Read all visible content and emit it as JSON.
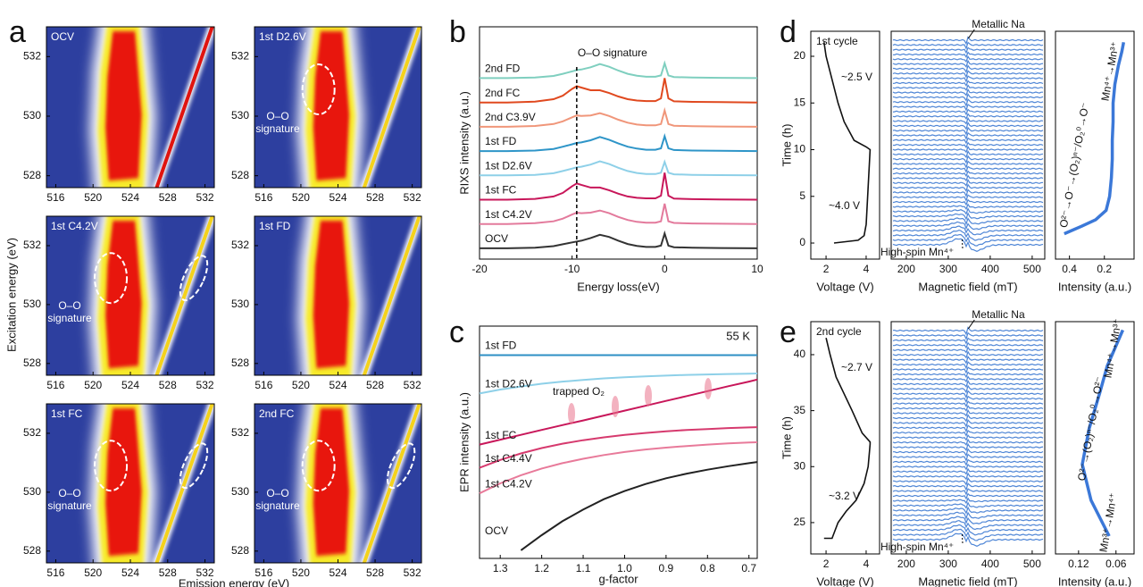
{
  "panel_labels": [
    "a",
    "b",
    "c",
    "d",
    "e"
  ],
  "chart_data": [
    {
      "type": "heatmap",
      "label": "OCV",
      "xlim": [
        515,
        533
      ],
      "xticks": [
        516,
        520,
        524,
        528,
        532
      ],
      "ylim": [
        527.6,
        533
      ],
      "yticks": [
        528,
        530,
        532
      ]
    },
    {
      "type": "heatmap",
      "label": "1st D2.6V",
      "xlim": [
        515,
        533
      ],
      "xticks": [
        516,
        520,
        524,
        528,
        532
      ],
      "ylim": [
        527.6,
        533
      ],
      "yticks": [
        528,
        530,
        532
      ],
      "annotation": [
        "O–O",
        "signature"
      ]
    },
    {
      "type": "heatmap",
      "label": "1st C4.2V",
      "xlim": [
        515,
        533
      ],
      "xticks": [
        516,
        520,
        524,
        528,
        532
      ],
      "ylim": [
        527.6,
        533
      ],
      "yticks": [
        528,
        530,
        532
      ],
      "annotation": [
        "O–O",
        "signature"
      ],
      "ylabel": "Excitation energy (eV)"
    },
    {
      "type": "heatmap",
      "label": "1st FD",
      "xlim": [
        515,
        533
      ],
      "xticks": [
        516,
        520,
        524,
        528,
        532
      ],
      "ylim": [
        527.6,
        533
      ],
      "yticks": [
        528,
        530,
        532
      ]
    },
    {
      "type": "heatmap",
      "label": "1st FC",
      "xlim": [
        515,
        533
      ],
      "xticks": [
        516,
        520,
        524,
        528,
        532
      ],
      "ylim": [
        527.6,
        533
      ],
      "yticks": [
        528,
        530,
        532
      ],
      "annotation": [
        "O–O",
        "signature"
      ],
      "xlabel": "Emission energy (eV)"
    },
    {
      "type": "heatmap",
      "label": "2nd FC",
      "xlim": [
        515,
        533
      ],
      "xticks": [
        516,
        520,
        524,
        528,
        532
      ],
      "ylim": [
        527.6,
        533
      ],
      "yticks": [
        528,
        530,
        532
      ],
      "annotation": [
        "O–O",
        "signature"
      ]
    },
    {
      "type": "line",
      "xlabel": "Energy loss(eV)",
      "ylabel": "RIXS intensity (a.u.)",
      "annotation": "O–O signature",
      "marker_line": -9.5,
      "xlim": [
        -20,
        10
      ],
      "xticks": [
        -20,
        -10,
        0,
        10
      ],
      "ylim": [
        -0.4,
        8.2
      ],
      "x": [
        -20,
        -17,
        -14,
        -12,
        -11,
        -10,
        -9.5,
        -9,
        -8,
        -7,
        -6,
        -5,
        -4,
        -3,
        -2,
        -1,
        -0.4,
        0,
        0.4,
        1,
        3,
        6,
        10
      ],
      "series": [
        {
          "name": "OCV",
          "color": "#333333",
          "values": [
            0,
            0,
            0.02,
            0.08,
            0.15,
            0.22,
            0.25,
            0.28,
            0.38,
            0.5,
            0.42,
            0.28,
            0.16,
            0.09,
            0.05,
            0.05,
            0.1,
            0.55,
            0.1,
            0.04,
            0.02,
            0.01,
            0
          ]
        },
        {
          "name": "1st C4.2V",
          "color": "#e37a9c",
          "values": [
            0.9,
            0.9,
            0.93,
            1.0,
            1.1,
            1.25,
            1.32,
            1.3,
            1.32,
            1.4,
            1.3,
            1.16,
            1.05,
            0.98,
            0.95,
            0.95,
            1.0,
            1.65,
            1.0,
            0.94,
            0.92,
            0.91,
            0.9
          ]
        },
        {
          "name": "1st FC",
          "color": "#c8175a",
          "values": [
            1.8,
            1.8,
            1.83,
            1.92,
            2.05,
            2.3,
            2.4,
            2.35,
            2.25,
            2.25,
            2.15,
            2.02,
            1.92,
            1.87,
            1.85,
            1.85,
            1.95,
            2.8,
            1.95,
            1.84,
            1.82,
            1.81,
            1.8
          ]
        },
        {
          "name": "1st D2.6V",
          "color": "#8ed0e8",
          "values": [
            2.7,
            2.7,
            2.72,
            2.78,
            2.86,
            2.95,
            3.0,
            3.02,
            3.1,
            3.22,
            3.12,
            2.98,
            2.86,
            2.79,
            2.75,
            2.75,
            2.8,
            3.2,
            2.8,
            2.74,
            2.72,
            2.71,
            2.7
          ]
        },
        {
          "name": "1st FD",
          "color": "#2e95c8",
          "values": [
            3.6,
            3.6,
            3.62,
            3.68,
            3.76,
            3.85,
            3.9,
            3.92,
            4.0,
            4.12,
            4.02,
            3.88,
            3.76,
            3.69,
            3.65,
            3.65,
            3.7,
            4.15,
            3.7,
            3.64,
            3.62,
            3.61,
            3.6
          ]
        },
        {
          "name": "2nd C3.9V",
          "color": "#f0967a",
          "values": [
            4.5,
            4.5,
            4.53,
            4.6,
            4.7,
            4.85,
            4.92,
            4.9,
            4.92,
            5.0,
            4.9,
            4.76,
            4.65,
            4.58,
            4.55,
            4.55,
            4.6,
            5.1,
            4.6,
            4.54,
            4.52,
            4.51,
            4.5
          ]
        },
        {
          "name": "2nd FC",
          "color": "#e0491f",
          "values": [
            5.4,
            5.4,
            5.43,
            5.52,
            5.65,
            5.9,
            6.0,
            5.95,
            5.85,
            5.85,
            5.75,
            5.62,
            5.52,
            5.47,
            5.45,
            5.45,
            5.55,
            6.3,
            5.55,
            5.44,
            5.42,
            5.41,
            5.4
          ]
        },
        {
          "name": "2nd FD",
          "color": "#7fcfbf",
          "values": [
            6.3,
            6.3,
            6.32,
            6.38,
            6.46,
            6.55,
            6.6,
            6.62,
            6.7,
            6.82,
            6.72,
            6.58,
            6.46,
            6.39,
            6.35,
            6.35,
            6.4,
            6.85,
            6.4,
            6.34,
            6.32,
            6.31,
            6.3
          ]
        }
      ]
    },
    {
      "type": "line",
      "xlabel": "g-factor",
      "ylabel": "EPR intensity (a.u.)",
      "annotation": "trapped O₂",
      "temperature": "55 K",
      "xlim": [
        1.35,
        0.68
      ],
      "xticks": [
        1.3,
        1.2,
        1.1,
        {
          "value": 1,
          "label": "1.0"
        },
        0.9,
        0.8,
        0.7
      ],
      "ylim": [
        0,
        10
      ],
      "x": [
        1.35,
        1.3,
        1.25,
        1.2,
        1.15,
        1.1,
        1.05,
        1.0,
        0.95,
        0.9,
        0.85,
        0.8,
        0.75,
        0.7,
        0.68
      ],
      "series": [
        {
          "name": "1st FD",
          "color": "#2e8fc4",
          "values": [
            8.75,
            8.75,
            8.75,
            8.75,
            8.75,
            8.75,
            8.75,
            8.75,
            8.75,
            8.75,
            8.75,
            8.75,
            8.75,
            8.75,
            8.75
          ]
        },
        {
          "name": "1st D2.6V",
          "color": "#8ed0e8",
          "values": [
            7.1,
            7.27,
            7.4,
            7.52,
            7.61,
            7.68,
            7.75,
            7.8,
            7.84,
            7.87,
            7.9,
            7.92,
            7.94,
            7.95,
            7.96
          ]
        },
        {
          "name": "1st FC",
          "color": "#c8175a",
          "values": [
            4.9,
            5.11,
            5.32,
            5.53,
            5.74,
            5.94,
            6.15,
            6.36,
            6.57,
            6.78,
            6.99,
            7.2,
            7.41,
            7.61,
            7.7
          ]
        },
        {
          "name": "1st C4.4V",
          "color": "#d63a6e",
          "values": [
            3.9,
            4.24,
            4.52,
            4.75,
            4.94,
            5.09,
            5.21,
            5.32,
            5.4,
            5.47,
            5.53,
            5.57,
            5.61,
            5.64,
            5.65
          ]
        },
        {
          "name": "1st C4.2V",
          "color": "#e87a9a",
          "values": [
            2.8,
            3.23,
            3.58,
            3.87,
            4.1,
            4.29,
            4.45,
            4.58,
            4.69,
            4.77,
            4.84,
            4.9,
            4.95,
            4.99,
            5.0
          ]
        },
        {
          "name": "OCV",
          "color": "#222222",
          "values": [
            null,
            null,
            0.35,
            1.0,
            1.6,
            2.1,
            2.55,
            2.9,
            3.2,
            3.45,
            3.65,
            3.82,
            3.97,
            4.1,
            4.15
          ]
        }
      ]
    },
    {
      "type": "line",
      "title": "1st cycle",
      "xlabel": "Voltage (V)",
      "ylabel": "Time (h)",
      "annotations": [
        "~2.5 V",
        "~4.0 V"
      ],
      "xlim": [
        1.24,
        4.67
      ],
      "xticks": [
        2,
        4
      ],
      "ylim": [
        -1.72,
        22.68
      ],
      "yticks": [
        0,
        5,
        10,
        15,
        20
      ],
      "color": "#111111",
      "x": [
        2.4,
        3.6,
        3.9,
        4.0,
        4.05,
        4.1,
        4.15,
        4.2,
        4.0,
        3.4,
        2.9,
        2.6,
        2.3,
        2.0,
        1.9
      ],
      "values": [
        0,
        0.3,
        0.8,
        2,
        4,
        6,
        8,
        10,
        10.3,
        11,
        13,
        15,
        17.5,
        20,
        21.5
      ]
    },
    {
      "type": "stack",
      "xlabel": "Magnetic field (mT)",
      "annotations": [
        "Metallic Na",
        "High-spin Mn⁴⁺"
      ],
      "xlim": [
        164,
        530
      ],
      "xticks": [
        200,
        300,
        400,
        500
      ],
      "color": "#4f86d6"
    },
    {
      "type": "line",
      "xlabel": "Intensity (a.u.)",
      "annotations": [
        "Mn⁴⁺→Mn³⁺",
        "O²⁻→O⁻→(O₂)ⁿ⁻/O₂⁰→O⁻"
      ],
      "xlim": [
        0.48,
        0.03
      ],
      "xticks": [
        0.4,
        0.2
      ],
      "ylim": [
        -1.72,
        22.68
      ],
      "color": "#3b78d8",
      "x": [
        0.43,
        0.33,
        0.25,
        0.19,
        0.17,
        0.16,
        0.155,
        0.155,
        0.15,
        0.15,
        0.14,
        0.12,
        0.1,
        0.09
      ],
      "values": [
        1,
        1.8,
        2.5,
        3.5,
        5,
        7,
        9,
        11,
        13,
        15,
        17,
        19,
        20.5,
        21.5
      ]
    },
    {
      "type": "line",
      "title": "2nd cycle",
      "xlabel": "Voltage (V)",
      "ylabel": "Time (h)",
      "annotations": [
        "~2.7 V",
        "~3.2 V"
      ],
      "xlim": [
        1.24,
        4.67
      ],
      "xticks": [
        2,
        4
      ],
      "ylim": [
        22.2,
        42.95
      ],
      "yticks": [
        25,
        30,
        35,
        40
      ],
      "color": "#111111",
      "x": [
        1.9,
        2.3,
        2.6,
        3.0,
        3.5,
        3.9,
        4.1,
        4.2,
        4.2,
        3.8,
        3.3,
        2.9,
        2.5,
        2.2,
        2.0
      ],
      "values": [
        23.6,
        23.6,
        25,
        26,
        27,
        28.5,
        30,
        32,
        32.2,
        33,
        35,
        36.5,
        38,
        40,
        41.5
      ]
    },
    {
      "type": "stack",
      "xlabel": "Magnetic field (mT)",
      "annotations": [
        "Metallic Na",
        "High-spin Mn⁴⁺"
      ],
      "xlim": [
        164,
        530
      ],
      "xticks": [
        200,
        300,
        400,
        500
      ],
      "color": "#4f86d6"
    },
    {
      "type": "line",
      "xlabel": "Intensity (a.u.)",
      "annotations": [
        "Mn⁴⁺→Mn³⁺",
        "O²⁻→(O₂)ⁿ⁻/O₂⁰→O²⁻",
        "Mn³⁺→Mn⁴⁺"
      ],
      "xlim": [
        0.157,
        0.031
      ],
      "xticks": [
        0.12,
        0.06
      ],
      "ylim": [
        22.2,
        42.95
      ],
      "color": "#3b78d8",
      "x": [
        0.071,
        0.1,
        0.114,
        0.103,
        0.086,
        0.074,
        0.049
      ],
      "values": [
        23.8,
        27,
        30.2,
        33.4,
        36.6,
        39,
        42.2
      ]
    }
  ]
}
